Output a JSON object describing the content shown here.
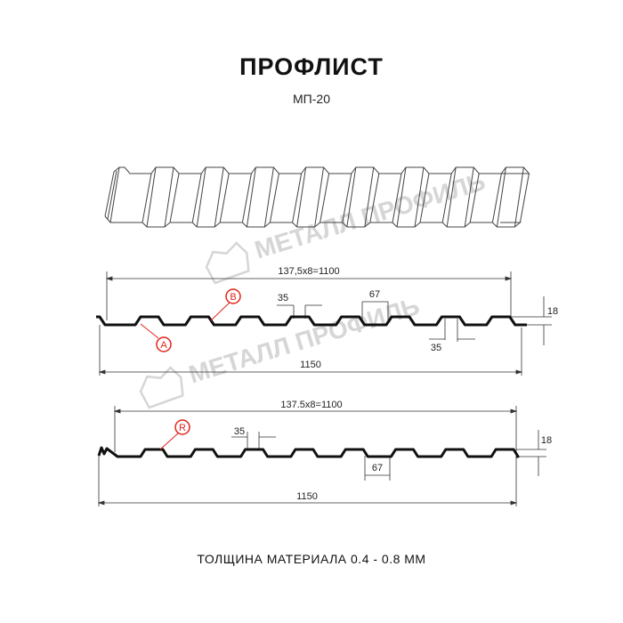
{
  "header": {
    "title": "ПРОФЛИСТ",
    "subtitle": "МП-20"
  },
  "watermark": "МЕТАЛЛ ПРОФИЛЬ",
  "profile_a": {
    "span_label": "137,5x8=1100",
    "total_label": "1150",
    "rib_top_label": "35",
    "rib_bottom_label": "35",
    "valley_label": "67",
    "height_label": "18",
    "marker_b": "B",
    "marker_a": "A"
  },
  "profile_r": {
    "span_label": "137.5x8=1100",
    "total_label": "1150",
    "rib_top_label": "35",
    "valley_label": "67",
    "height_label": "18",
    "marker_r": "R"
  },
  "footer": {
    "thickness": "ТОЛЩИНА МАТЕРИАЛА 0.4 - 0.8 ММ"
  },
  "colors": {
    "line": "#111111",
    "marker": "#e2231a",
    "watermark": "#d0d0d0"
  }
}
